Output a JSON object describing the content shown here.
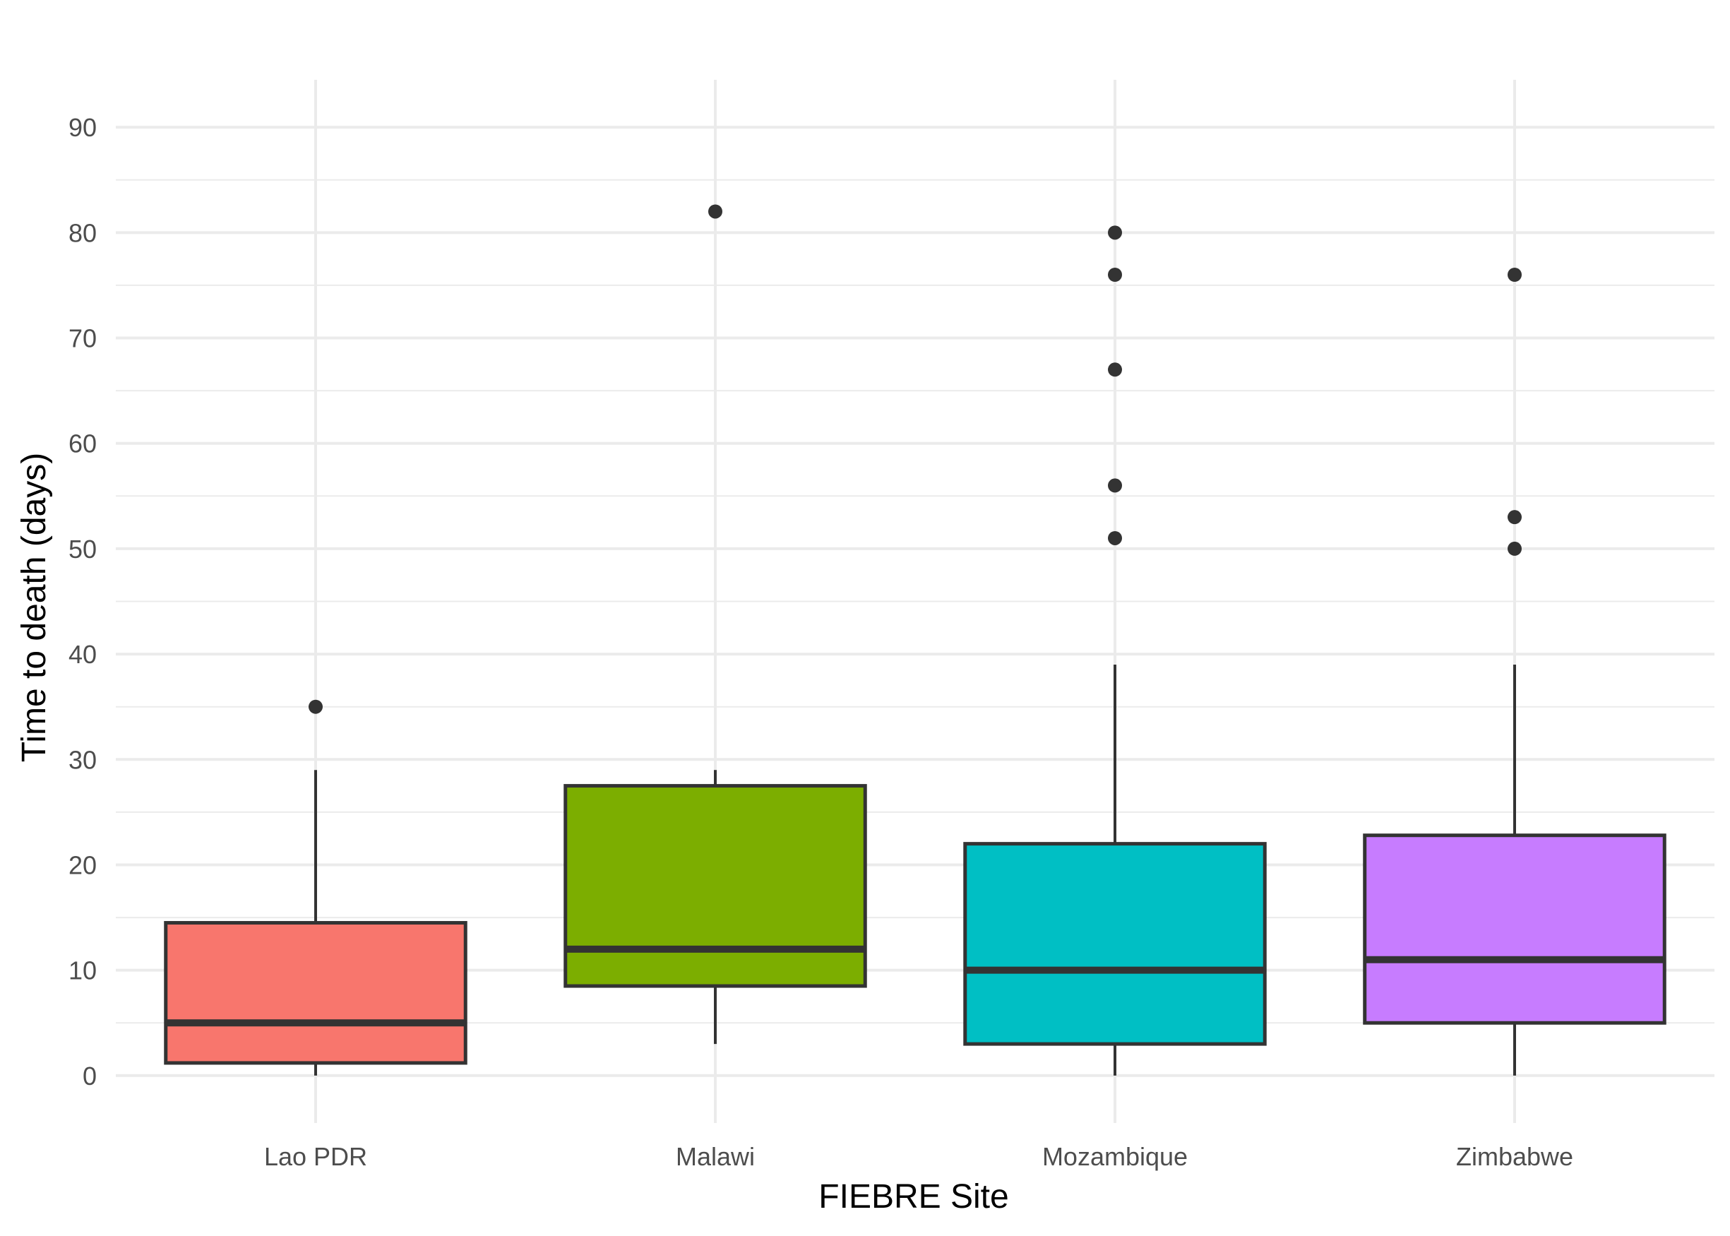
{
  "chart_data": {
    "type": "box",
    "xlabel": "FIEBRE Site",
    "ylabel": "Time to death (days)",
    "ylim": [
      -4.5,
      94.5
    ],
    "yticks": [
      0,
      10,
      20,
      30,
      40,
      50,
      60,
      70,
      80,
      90
    ],
    "grid": true,
    "legend": "none",
    "categories": [
      "Lao PDR",
      "Malawi",
      "Mozambique",
      "Zimbabwe"
    ],
    "boxes": [
      {
        "category": "Lao PDR",
        "whisker_low": 0,
        "q1": 1.2,
        "median": 5,
        "q3": 14.5,
        "whisker_high": 29,
        "outliers": [
          35
        ],
        "color": "#F8766D"
      },
      {
        "category": "Malawi",
        "whisker_low": 3,
        "q1": 8.5,
        "median": 12,
        "q3": 27.5,
        "whisker_high": 29,
        "outliers": [
          82
        ],
        "color": "#7CAE00"
      },
      {
        "category": "Mozambique",
        "whisker_low": 0,
        "q1": 3,
        "median": 10,
        "q3": 22,
        "whisker_high": 39,
        "outliers": [
          51,
          56,
          67,
          76,
          80
        ],
        "color": "#00BFC4"
      },
      {
        "category": "Zimbabwe",
        "whisker_low": 0,
        "q1": 5,
        "median": 11,
        "q3": 22.8,
        "whisker_high": 39,
        "outliers": [
          50,
          53,
          76
        ],
        "color": "#C77CFF"
      }
    ]
  }
}
